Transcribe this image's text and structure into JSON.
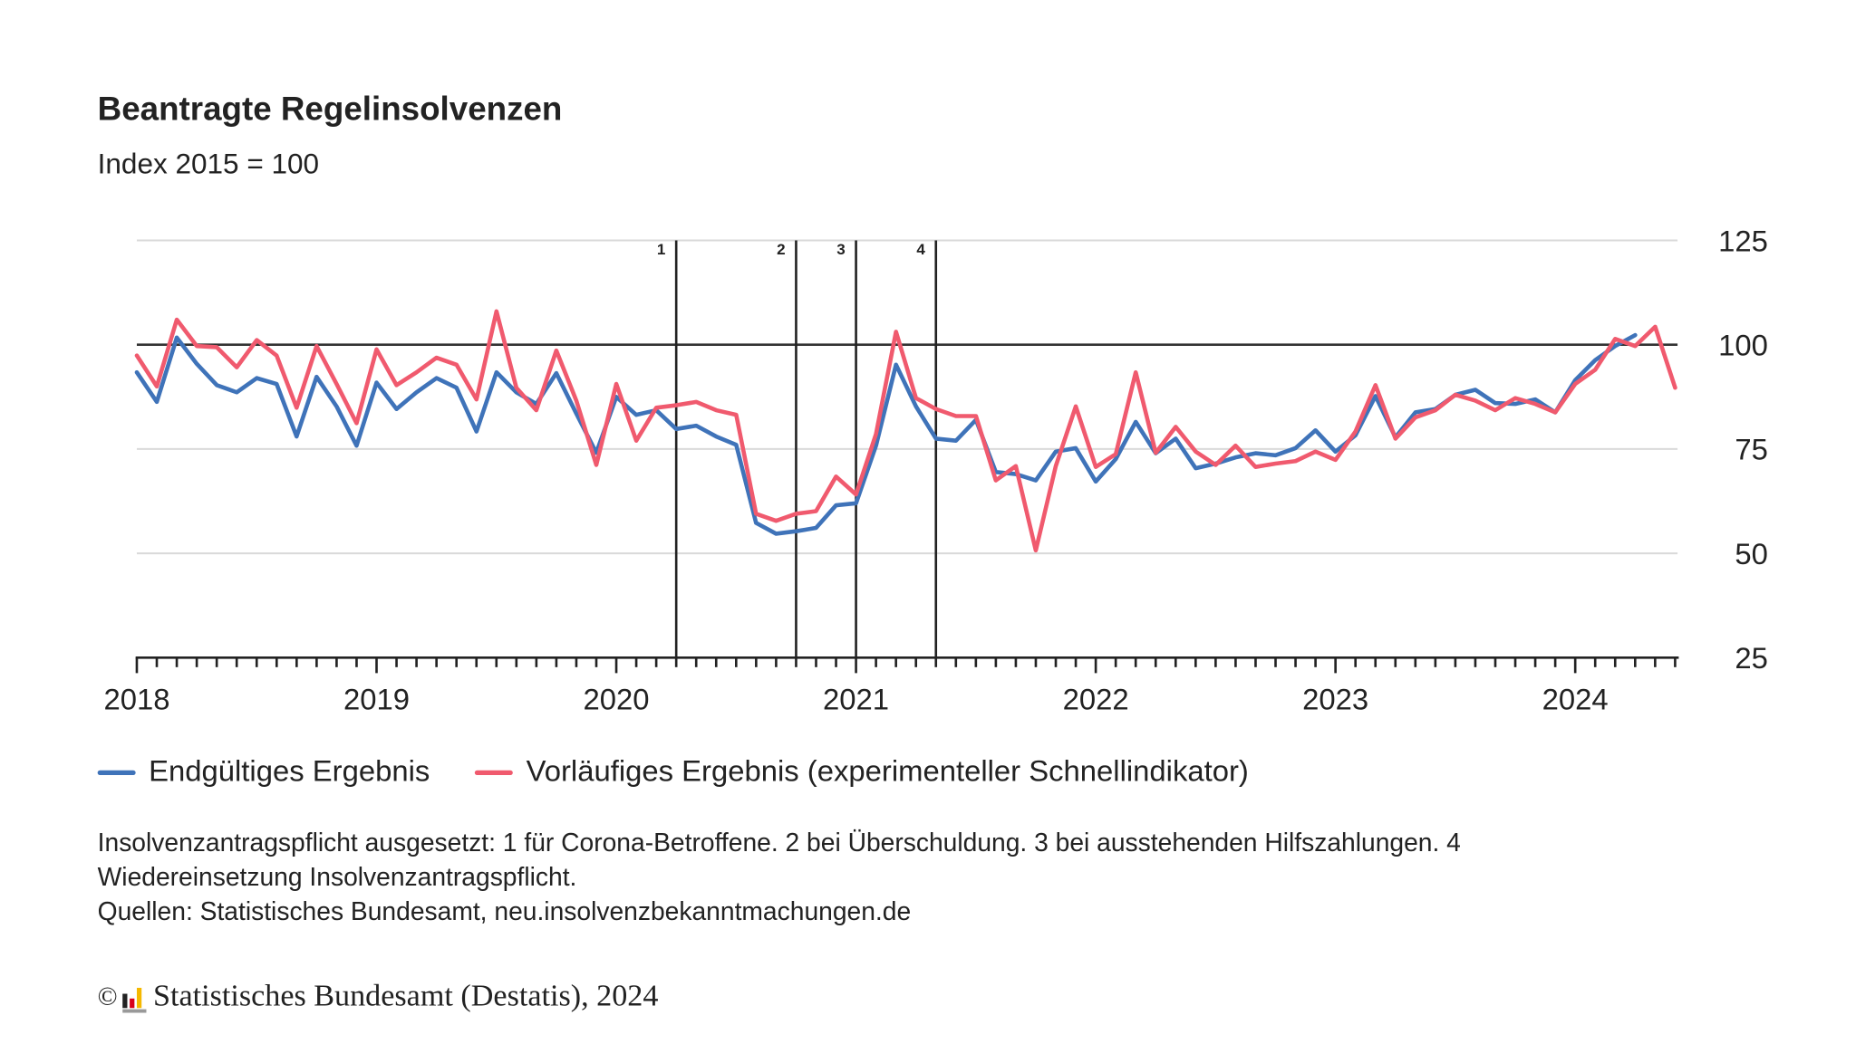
{
  "title": "Beantragte Regelinsolvenzen",
  "subtitle": "Index 2015 = 100",
  "legend": [
    {
      "label": "Endgültiges Ergebnis",
      "color": "#3f73b9"
    },
    {
      "label": "Vorläufiges Ergebnis (experimenteller Schnellindikator)",
      "color": "#f05a6e"
    }
  ],
  "notes": {
    "line1": "Insolvenzantragspflicht ausgesetzt: 1 für Corona-Betroffene. 2 bei Überschuldung. 3 bei ausstehenden Hilfszahlungen. 4 Wiedereinsetzung Insolvenzantragspflicht.",
    "line2": "Quellen: Statistisches Bundesamt, neu.insolvenzbekanntmachungen.de"
  },
  "copyright": {
    "symbol": "©",
    "text": "Statistisches Bundesamt (Destatis), 2024",
    "logo_colors": [
      "#222222",
      "#d9001b",
      "#f5b800"
    ]
  },
  "chart_data": {
    "type": "line",
    "title": "Beantragte Regelinsolvenzen",
    "subtitle": "Index 2015 = 100",
    "xlabel": "",
    "ylabel": "",
    "x_start": "2018-01",
    "x_frequency": "monthly",
    "xlim": [
      "2018-01",
      "2024-06"
    ],
    "ylim": [
      25,
      125
    ],
    "y_ticks": [
      "125",
      "100",
      "75",
      "50",
      "25"
    ],
    "x_ticks": [
      "2018",
      "2019",
      "2020",
      "2021",
      "2022",
      "2023",
      "2024"
    ],
    "y_axis_position": "right",
    "grid": true,
    "reference_line": 100,
    "legend_position": "bottom",
    "annotations": [
      {
        "label": "1",
        "date": "2020-04"
      },
      {
        "label": "2",
        "date": "2020-10"
      },
      {
        "label": "3",
        "date": "2021-01"
      },
      {
        "label": "4",
        "date": "2021-05"
      }
    ],
    "series": [
      {
        "name": "Endgültiges Ergebnis",
        "color": "#3f73b9",
        "values": [
          93.4,
          86.3,
          101.7,
          95.4,
          90.3,
          88.6,
          92.0,
          90.6,
          78.0,
          92.3,
          85.2,
          75.8,
          90.9,
          84.6,
          88.6,
          92.0,
          89.7,
          79.2,
          93.4,
          88.6,
          85.8,
          93.2,
          83.5,
          74.1,
          87.5,
          83.2,
          84.3,
          79.8,
          80.6,
          78.0,
          76.0,
          57.3,
          54.7,
          55.3,
          56.1,
          61.5,
          62.0,
          75.8,
          95.2,
          85.2,
          77.5,
          77.0,
          82.0,
          69.5,
          69.0,
          67.5,
          74.4,
          75.2,
          67.2,
          72.6,
          81.5,
          74.0,
          77.5,
          70.4,
          71.5,
          73.0,
          74.0,
          73.5,
          75.2,
          79.5,
          74.4,
          78.3,
          87.7,
          77.8,
          83.8,
          84.6,
          88.0,
          89.2,
          86.0,
          85.8,
          86.9,
          83.8,
          91.5,
          96.3,
          99.7,
          102.3
        ]
      },
      {
        "name": "Vorläufiges Ergebnis (experimenteller Schnellindikator)",
        "color": "#f05a6e",
        "values": [
          97.4,
          90.0,
          106.0,
          99.7,
          99.4,
          94.6,
          101.1,
          97.4,
          84.9,
          99.7,
          90.6,
          81.2,
          98.9,
          90.3,
          93.4,
          96.9,
          95.2,
          86.9,
          108.0,
          89.7,
          84.3,
          98.6,
          86.6,
          71.2,
          90.6,
          77.0,
          84.9,
          85.5,
          86.3,
          84.3,
          83.2,
          59.5,
          57.8,
          59.5,
          60.1,
          68.4,
          64.1,
          78.6,
          103.1,
          87.2,
          84.6,
          82.9,
          82.9,
          67.5,
          70.9,
          50.7,
          70.9,
          85.2,
          70.7,
          73.8,
          93.4,
          74.1,
          80.3,
          74.4,
          71.2,
          75.8,
          70.7,
          71.5,
          72.1,
          74.4,
          72.4,
          79.2,
          90.3,
          77.5,
          82.6,
          84.3,
          88.0,
          86.6,
          84.3,
          87.2,
          85.8,
          83.8,
          90.6,
          94.0,
          101.4,
          99.7,
          104.3,
          89.7
        ]
      }
    ]
  }
}
